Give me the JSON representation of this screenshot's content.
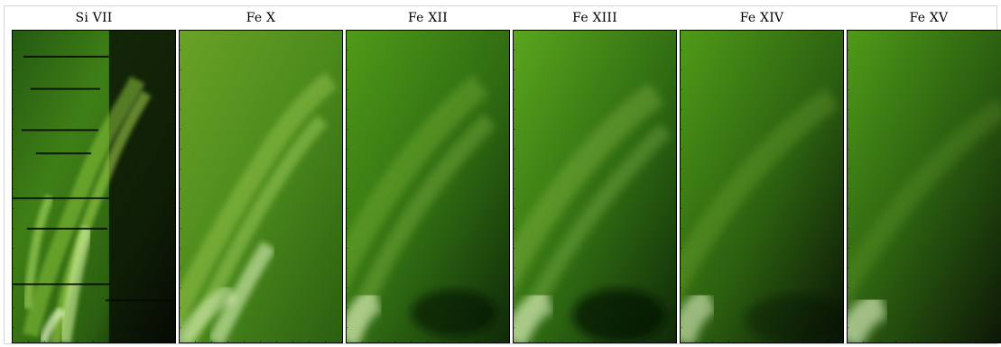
{
  "panels": [
    {
      "label": "Si VII",
      "style": "noisy"
    },
    {
      "label": "Fe X",
      "style": "bright"
    },
    {
      "label": "Fe XII",
      "style": "smooth"
    },
    {
      "label": "Fe XIII",
      "style": "smooth"
    },
    {
      "label": "Fe XIV",
      "style": "smooth"
    },
    {
      "label": "Fe XV",
      "style": "smooth"
    }
  ],
  "colors": {
    "base": "#3f7f16",
    "dark": "#0b1406",
    "mid": "#4f9b18",
    "bright": "#b9df64",
    "white": "#f1ffd5"
  }
}
